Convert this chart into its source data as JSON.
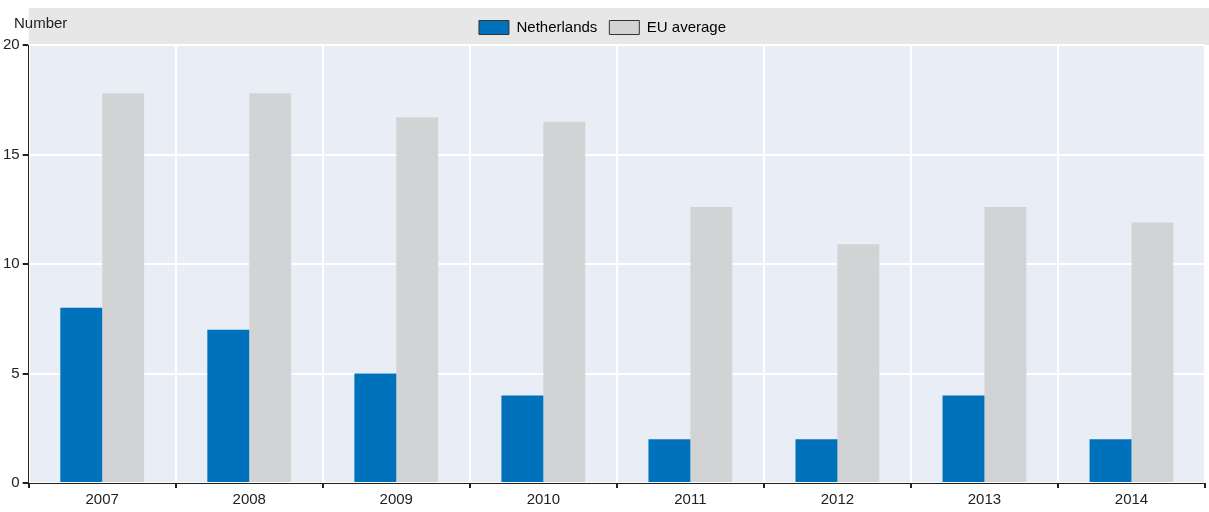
{
  "chart_data": {
    "type": "bar",
    "ylabel": "Number",
    "categories": [
      "2007",
      "2008",
      "2009",
      "2010",
      "2011",
      "2012",
      "2013",
      "2014"
    ],
    "series": [
      {
        "name": "Netherlands",
        "color": "#0072bb",
        "values": [
          8,
          7,
          5,
          4,
          2,
          2,
          4,
          2
        ]
      },
      {
        "name": "EU average",
        "color": "#d2d3d5",
        "values": [
          17.8,
          17.8,
          16.7,
          16.5,
          12.6,
          10.9,
          12.6,
          11.9
        ]
      }
    ],
    "ylim": [
      0,
      20
    ],
    "yticks": [
      0,
      5,
      10,
      15,
      20
    ],
    "grid": true,
    "legend": "top"
  }
}
